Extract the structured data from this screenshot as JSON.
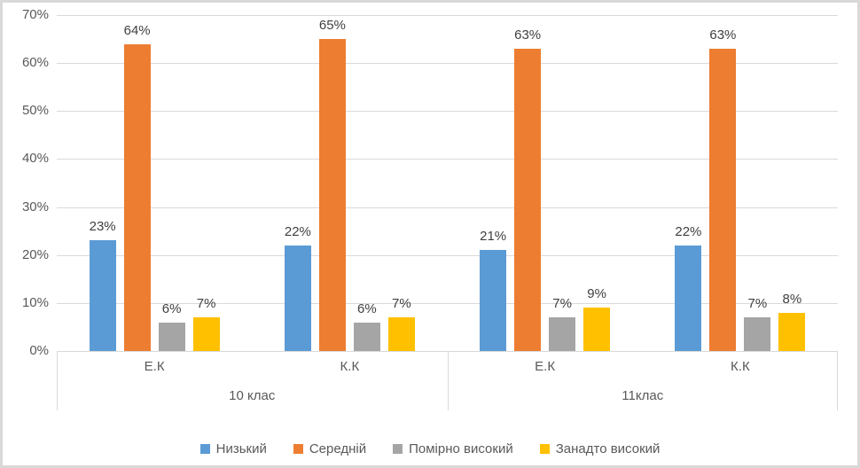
{
  "chart_data": {
    "type": "bar",
    "title": "",
    "xlabel": "",
    "ylabel": "",
    "ylim": [
      0,
      70
    ],
    "y_tick_values": [
      0,
      10,
      20,
      30,
      40,
      50,
      60,
      70
    ],
    "y_tick_labels": [
      "0%",
      "10%",
      "20%",
      "30%",
      "40%",
      "50%",
      "60%",
      "70%"
    ],
    "grid": true,
    "legend_position": "bottom",
    "groups": [
      {
        "label": "10 клас",
        "categories": [
          "Е.К",
          "К.К"
        ]
      },
      {
        "label": "11клас",
        "categories": [
          "Е.К",
          "К.К"
        ]
      }
    ],
    "series": [
      {
        "name": "Низький",
        "color": "#5B9BD5",
        "values": [
          23,
          22,
          21,
          22
        ],
        "labels": [
          "23%",
          "22%",
          "21%",
          "22%"
        ]
      },
      {
        "name": "Середній",
        "color": "#ED7D31",
        "values": [
          64,
          65,
          63,
          63
        ],
        "labels": [
          "64%",
          "65%",
          "63%",
          "63%"
        ]
      },
      {
        "name": "Помірно високий",
        "color": "#A5A5A5",
        "values": [
          6,
          6,
          7,
          7
        ],
        "labels": [
          "6%",
          "6%",
          "7%",
          "7%"
        ]
      },
      {
        "name": "Занадто високий",
        "color": "#FFC000",
        "values": [
          7,
          7,
          9,
          8
        ],
        "labels": [
          "7%",
          "7%",
          "9%",
          "8%"
        ]
      }
    ]
  },
  "style": {
    "grid_color": "#D9D9D9",
    "axis_text_color": "#595959",
    "data_label_color": "#404040",
    "frame_border_color": "#D9D9D9",
    "background": "#FFFFFF"
  }
}
